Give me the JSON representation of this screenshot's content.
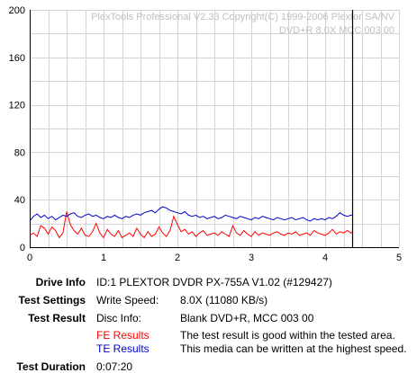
{
  "chart_data": {
    "type": "line",
    "watermark": [
      "PlexTools Professional V2.33 Copyright(C) 1999-2006 Plextor SA/NV",
      "DVD+R    8.0X    MCC 003 00"
    ],
    "xlim": [
      0,
      5
    ],
    "ylim": [
      0,
      200
    ],
    "x_ticks": [
      "0",
      "1",
      "2",
      "3",
      "4",
      "5"
    ],
    "y_ticks": [
      "0",
      "40",
      "80",
      "120",
      "160",
      "200"
    ],
    "grid": true,
    "end_marker_x": 4.37,
    "series": [
      {
        "name": "FE Results",
        "color": "#ff0000",
        "x": [
          0.0,
          0.05,
          0.1,
          0.15,
          0.2,
          0.25,
          0.3,
          0.35,
          0.4,
          0.45,
          0.5,
          0.55,
          0.6,
          0.65,
          0.7,
          0.75,
          0.8,
          0.85,
          0.9,
          0.95,
          1.0,
          1.05,
          1.1,
          1.15,
          1.2,
          1.25,
          1.3,
          1.35,
          1.4,
          1.45,
          1.5,
          1.55,
          1.6,
          1.65,
          1.7,
          1.75,
          1.8,
          1.85,
          1.9,
          1.95,
          2.0,
          2.05,
          2.1,
          2.15,
          2.2,
          2.25,
          2.3,
          2.35,
          2.4,
          2.45,
          2.5,
          2.55,
          2.6,
          2.65,
          2.7,
          2.75,
          2.8,
          2.85,
          2.9,
          2.95,
          3.0,
          3.05,
          3.1,
          3.15,
          3.2,
          3.25,
          3.3,
          3.35,
          3.4,
          3.45,
          3.5,
          3.55,
          3.6,
          3.65,
          3.7,
          3.75,
          3.8,
          3.85,
          3.9,
          3.95,
          4.0,
          4.05,
          4.1,
          4.15,
          4.2,
          4.25,
          4.3,
          4.35,
          4.37
        ],
        "y": [
          10,
          12,
          9,
          18,
          16,
          11,
          17,
          14,
          8,
          12,
          30,
          19,
          14,
          11,
          16,
          10,
          9,
          13,
          20,
          12,
          8,
          15,
          11,
          9,
          14,
          8,
          10,
          12,
          9,
          16,
          11,
          8,
          13,
          9,
          11,
          17,
          12,
          9,
          14,
          26,
          19,
          13,
          15,
          11,
          13,
          9,
          12,
          14,
          10,
          11,
          12,
          10,
          13,
          11,
          9,
          18,
          12,
          10,
          14,
          11,
          9,
          13,
          10,
          12,
          11,
          10,
          12,
          13,
          11,
          10,
          12,
          11,
          13,
          10,
          11,
          12,
          10,
          14,
          12,
          11,
          10,
          12,
          15,
          11,
          13,
          12,
          14,
          12,
          13
        ]
      },
      {
        "name": "TE Results",
        "color": "#0000cc",
        "x": [
          0.0,
          0.05,
          0.1,
          0.15,
          0.2,
          0.25,
          0.3,
          0.35,
          0.4,
          0.45,
          0.5,
          0.55,
          0.6,
          0.65,
          0.7,
          0.75,
          0.8,
          0.85,
          0.9,
          0.95,
          1.0,
          1.05,
          1.1,
          1.15,
          1.2,
          1.25,
          1.3,
          1.35,
          1.4,
          1.45,
          1.5,
          1.55,
          1.6,
          1.65,
          1.7,
          1.75,
          1.8,
          1.85,
          1.9,
          1.95,
          2.0,
          2.05,
          2.1,
          2.15,
          2.2,
          2.25,
          2.3,
          2.35,
          2.4,
          2.45,
          2.5,
          2.55,
          2.6,
          2.65,
          2.7,
          2.75,
          2.8,
          2.85,
          2.9,
          2.95,
          3.0,
          3.05,
          3.1,
          3.15,
          3.2,
          3.25,
          3.3,
          3.35,
          3.4,
          3.45,
          3.5,
          3.55,
          3.6,
          3.65,
          3.7,
          3.75,
          3.8,
          3.85,
          3.9,
          3.95,
          4.0,
          4.05,
          4.1,
          4.15,
          4.2,
          4.25,
          4.3,
          4.35,
          4.37
        ],
        "y": [
          22,
          26,
          28,
          25,
          27,
          24,
          26,
          23,
          25,
          27,
          26,
          28,
          29,
          26,
          25,
          27,
          28,
          26,
          27,
          25,
          24,
          26,
          25,
          27,
          25,
          24,
          26,
          25,
          27,
          28,
          27,
          29,
          30,
          31,
          29,
          32,
          34,
          33,
          31,
          30,
          29,
          28,
          30,
          27,
          26,
          27,
          25,
          26,
          24,
          25,
          26,
          24,
          25,
          27,
          26,
          25,
          24,
          26,
          25,
          24,
          23,
          25,
          24,
          26,
          25,
          24,
          23,
          25,
          24,
          23,
          24,
          25,
          23,
          24,
          25,
          23,
          22,
          24,
          23,
          24,
          23,
          25,
          24,
          26,
          29,
          27,
          26,
          27,
          27
        ]
      }
    ]
  },
  "info": {
    "drive_info": {
      "label": "Drive Info",
      "value": "ID:1 PLEXTOR DVDR PX-755A V1.02 (#129427)"
    },
    "test_settings": {
      "label": "Test Settings",
      "key": "Write Speed:",
      "value": "8.0X (11080 KB/s)"
    },
    "test_result": {
      "label": "Test Result",
      "key": "Disc Info:",
      "value": "Blank DVD+R, MCC 003 00"
    },
    "fe_results": {
      "key": "FE Results",
      "value": "The test result is good within the tested area.",
      "color": "#ff0000"
    },
    "te_results": {
      "key": "TE Results",
      "value": "This media can be written at the highest speed.",
      "color": "#0000cc"
    },
    "test_duration": {
      "label": "Test Duration",
      "value": "0:07:20"
    }
  }
}
